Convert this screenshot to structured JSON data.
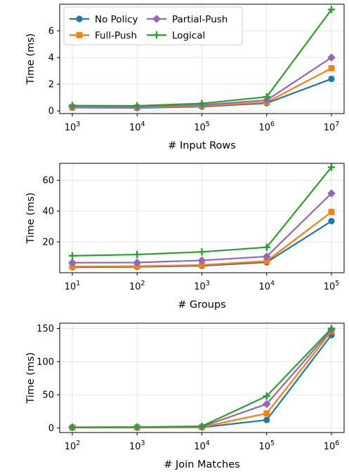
{
  "legend": {
    "placement": "upper-left",
    "entries": [
      {
        "name": "No Policy",
        "color": "#1f77b4",
        "marker": "circle"
      },
      {
        "name": "Full-Push",
        "color": "#ff7f0e",
        "marker": "square"
      },
      {
        "name": "Partial-Push",
        "color": "#9467bd",
        "marker": "diamond"
      },
      {
        "name": "Logical",
        "color": "#2ca02c",
        "marker": "plus"
      }
    ]
  },
  "chart_data": [
    {
      "type": "line",
      "xlabel": "# Input Rows",
      "ylabel": "Time (ms)",
      "xscale": "log",
      "x_tick_exponents": [
        "3",
        "4",
        "5",
        "6",
        "7"
      ],
      "y_ticks": [
        "0",
        "2",
        "4",
        "6"
      ],
      "ylim": [
        -0.2,
        8.0
      ],
      "grid": true,
      "x": [
        1000,
        10000,
        100000,
        1000000,
        10000000
      ],
      "series": [
        {
          "name": "No Policy",
          "color": "#1f77b4",
          "marker": "circle",
          "values": [
            0.25,
            0.22,
            0.32,
            0.58,
            2.4
          ]
        },
        {
          "name": "Full-Push",
          "color": "#ff7f0e",
          "marker": "square",
          "values": [
            0.28,
            0.25,
            0.38,
            0.65,
            3.2
          ]
        },
        {
          "name": "Partial-Push",
          "color": "#9467bd",
          "marker": "diamond",
          "values": [
            0.32,
            0.3,
            0.45,
            0.8,
            4.0
          ]
        },
        {
          "name": "Logical",
          "color": "#2ca02c",
          "marker": "plus",
          "values": [
            0.4,
            0.38,
            0.56,
            1.05,
            7.6
          ]
        }
      ]
    },
    {
      "type": "line",
      "xlabel": "# Groups",
      "ylabel": "Time (ms)",
      "xscale": "log",
      "x_tick_exponents": [
        "1",
        "2",
        "3",
        "4",
        "5"
      ],
      "y_ticks": [
        "20",
        "40",
        "60"
      ],
      "ylim": [
        0,
        71
      ],
      "grid": true,
      "x": [
        10,
        100,
        1000,
        10000,
        100000
      ],
      "series": [
        {
          "name": "No Policy",
          "color": "#1f77b4",
          "marker": "circle",
          "values": [
            3.6,
            3.8,
            4.5,
            6.8,
            33.5
          ]
        },
        {
          "name": "Full-Push",
          "color": "#ff7f0e",
          "marker": "square",
          "values": [
            4.0,
            4.2,
            5.0,
            7.5,
            39.5
          ]
        },
        {
          "name": "Partial-Push",
          "color": "#9467bd",
          "marker": "diamond",
          "values": [
            6.5,
            6.6,
            8.0,
            10.5,
            51.5
          ]
        },
        {
          "name": "Logical",
          "color": "#2ca02c",
          "marker": "plus",
          "values": [
            11.0,
            11.8,
            13.5,
            16.5,
            68.5
          ]
        }
      ]
    },
    {
      "type": "line",
      "xlabel": "# Join Matches",
      "ylabel": "Time (ms)",
      "xscale": "log",
      "x_tick_exponents": [
        "2",
        "3",
        "4",
        "5",
        "6"
      ],
      "y_ticks": [
        "0",
        "50",
        "100",
        "150"
      ],
      "ylim": [
        -7,
        158
      ],
      "grid": true,
      "x": [
        100,
        1000,
        10000,
        100000,
        1000000
      ],
      "series": [
        {
          "name": "No Policy",
          "color": "#1f77b4",
          "marker": "circle",
          "values": [
            0.5,
            0.6,
            0.8,
            12,
            140
          ]
        },
        {
          "name": "Full-Push",
          "color": "#ff7f0e",
          "marker": "square",
          "values": [
            0.6,
            0.7,
            1.2,
            22,
            146
          ]
        },
        {
          "name": "Partial-Push",
          "color": "#9467bd",
          "marker": "diamond",
          "values": [
            0.8,
            1.0,
            1.8,
            36,
            148
          ]
        },
        {
          "name": "Logical",
          "color": "#2ca02c",
          "marker": "plus",
          "values": [
            1.0,
            1.2,
            2.5,
            48,
            150
          ]
        }
      ]
    }
  ]
}
